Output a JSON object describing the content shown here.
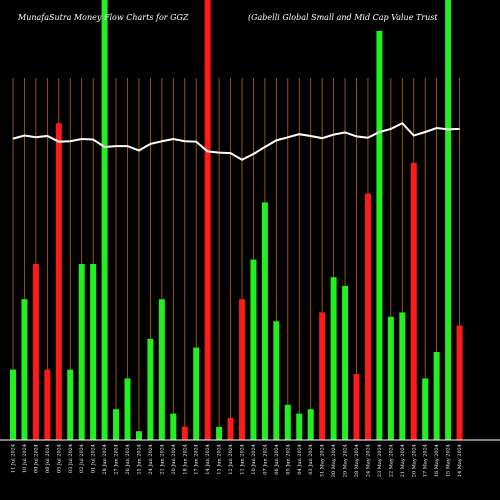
{
  "header": {
    "left": "MunafaSutra  Money Flow  Charts for GGZ",
    "right": "(Gabelli   Global Small and Mid Cap Value   Trust"
  },
  "colors": {
    "background": "#000000",
    "grid": "#b8690a",
    "up": "#22ee22",
    "down": "#ff1a1a",
    "line": "#ffffff"
  },
  "chart_data": {
    "type": "bar",
    "y_axis_shown": false,
    "ylim": [
      0,
      100
    ],
    "categories": [
      "11 Jul 2024",
      "10 Jul 2024",
      "09 Jul 2024",
      "08 Jul 2024",
      "05 Jul 2024",
      "03 Jul 2024",
      "02 Jul 2024",
      "01 Jul 2024",
      "28 Jun 2024",
      "27 Jun 2024",
      "26 Jun 2024",
      "25 Jun 2024",
      "24 Jun 2024",
      "21 Jun 2024",
      "20 Jun 2024",
      "18 Jun 2024",
      "17 Jun 2024",
      "14 Jun 2024",
      "13 Jun 2024",
      "12 Jun 2024",
      "11 Jun 2024",
      "10 Jun 2024",
      "07 Jun 2024",
      "06 Jun 2024",
      "05 Jun 2024",
      "04 Jun 2024",
      "03 Jun 2024",
      "31 May 2024",
      "30 May 2024",
      "29 May 2024",
      "28 May 2024",
      "24 May 2024",
      "23 May 2024",
      "22 May 2024",
      "21 May 2024",
      "20 May 2024",
      "17 May 2024",
      "16 May 2024",
      "15 May 2024",
      "14 May 2024"
    ],
    "bars": [
      {
        "value": 16,
        "direction": "up"
      },
      {
        "value": 32,
        "direction": "up"
      },
      {
        "value": 40,
        "direction": "down"
      },
      {
        "value": 16,
        "direction": "down"
      },
      {
        "value": 72,
        "direction": "down"
      },
      {
        "value": 16,
        "direction": "up"
      },
      {
        "value": 40,
        "direction": "up"
      },
      {
        "value": 40,
        "direction": "up"
      },
      {
        "value": 100,
        "direction": "up"
      },
      {
        "value": 7,
        "direction": "up"
      },
      {
        "value": 14,
        "direction": "up"
      },
      {
        "value": 2,
        "direction": "up"
      },
      {
        "value": 23,
        "direction": "up"
      },
      {
        "value": 32,
        "direction": "up"
      },
      {
        "value": 6,
        "direction": "up"
      },
      {
        "value": 3,
        "direction": "down"
      },
      {
        "value": 21,
        "direction": "up"
      },
      {
        "value": 100,
        "direction": "down"
      },
      {
        "value": 3,
        "direction": "up"
      },
      {
        "value": 5,
        "direction": "down"
      },
      {
        "value": 32,
        "direction": "down"
      },
      {
        "value": 41,
        "direction": "up"
      },
      {
        "value": 54,
        "direction": "up"
      },
      {
        "value": 27,
        "direction": "up"
      },
      {
        "value": 8,
        "direction": "up"
      },
      {
        "value": 6,
        "direction": "up"
      },
      {
        "value": 7,
        "direction": "up"
      },
      {
        "value": 29,
        "direction": "down"
      },
      {
        "value": 37,
        "direction": "up"
      },
      {
        "value": 35,
        "direction": "up"
      },
      {
        "value": 15,
        "direction": "down"
      },
      {
        "value": 56,
        "direction": "down"
      },
      {
        "value": 93,
        "direction": "up"
      },
      {
        "value": 28,
        "direction": "up"
      },
      {
        "value": 29,
        "direction": "up"
      },
      {
        "value": 63,
        "direction": "down"
      },
      {
        "value": 14,
        "direction": "up"
      },
      {
        "value": 20,
        "direction": "up"
      },
      {
        "value": 100,
        "direction": "up"
      },
      {
        "value": 26,
        "direction": "down"
      }
    ],
    "line": [
      68.5,
      69.2,
      68.8,
      69.1,
      67.8,
      67.9,
      68.4,
      68.3,
      66.6,
      66.8,
      66.8,
      65.8,
      67.3,
      67.9,
      68.4,
      67.9,
      67.8,
      65.6,
      65.3,
      65.2,
      63.7,
      65.0,
      66.6,
      68.1,
      68.8,
      69.5,
      69.1,
      68.6,
      69.4,
      69.9,
      69.0,
      68.7,
      70.0,
      70.7,
      72.0,
      69.2,
      70.0,
      70.9,
      70.6,
      70.7
    ]
  }
}
